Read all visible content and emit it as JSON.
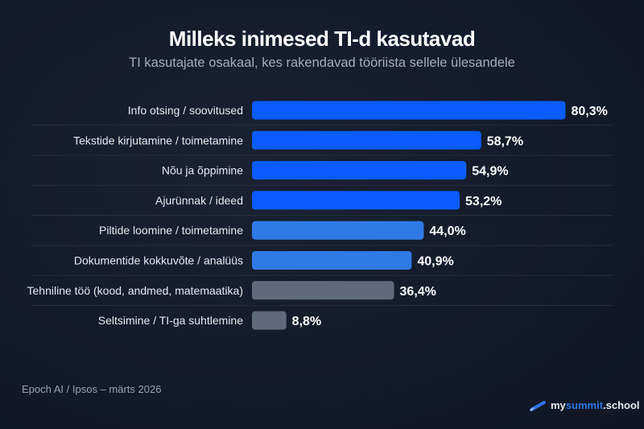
{
  "chart_data": {
    "type": "bar",
    "orientation": "horizontal",
    "title": "Milleks inimesed TI-d kasutavad",
    "subtitle": "TI kasutajate osakaal, kes rakendavad tööriista sellele ülesandele",
    "categories": [
      "Info otsing / soovitused",
      "Tekstide kirjutamine / toimetamine",
      "Nõu ja õppimine",
      "Ajurünnak / ideed",
      "Piltide loomine / toimetamine",
      "Dokumentide kokkuvõte / analüüs",
      "Tehniline töö (kood, andmed, matemaatika)",
      "Seltsimine / TI-ga suhtlemine"
    ],
    "values": [
      80.3,
      58.7,
      54.9,
      53.2,
      44.0,
      40.9,
      36.4,
      8.8
    ],
    "value_labels": [
      "80,3%",
      "58,7%",
      "54,9%",
      "53,2%",
      "44,0%",
      "40,9%",
      "36,4%",
      "8,8%"
    ],
    "bar_colors": [
      "#0b5cff",
      "#0b5cff",
      "#0b5cff",
      "#0b5cff",
      "#2f7be6",
      "#2f7be6",
      "#5f6a7c",
      "#5f6a7c"
    ],
    "unit": "%",
    "grid": false,
    "legend": "none"
  },
  "footer": {
    "source": "Epoch AI / Ipsos – märts 2026",
    "logo_my": "my",
    "logo_summit": "summit",
    "logo_school": ".school"
  },
  "colors": {
    "background": "#131a29",
    "text": "#ffffff",
    "muted": "#a4acba"
  }
}
